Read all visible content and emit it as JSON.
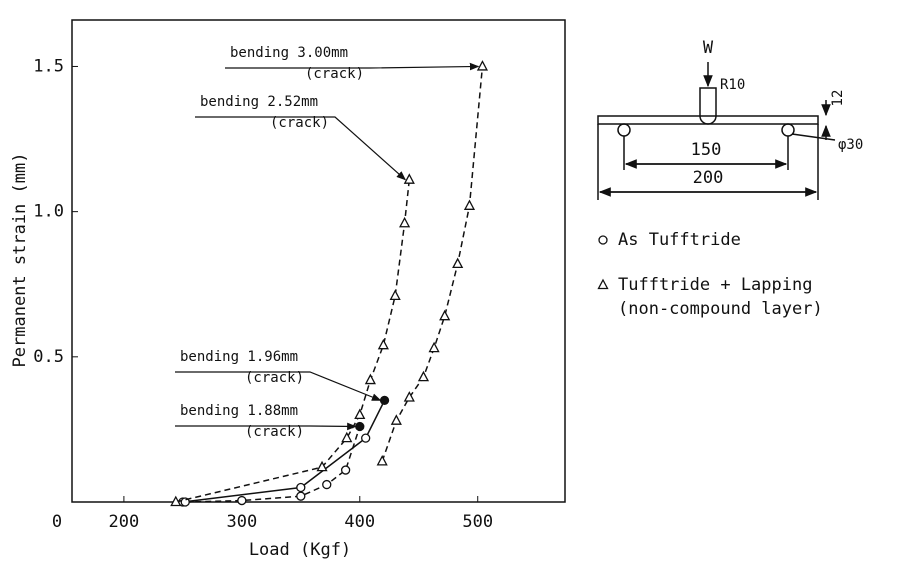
{
  "chart_data": {
    "type": "line",
    "xlabel": "Load (Kgf)",
    "ylabel": "Permanent strain (mm)",
    "origin_label": "0",
    "xlim": [
      156,
      574
    ],
    "xticks": [
      200,
      300,
      400,
      500
    ],
    "ylim": [
      0,
      1.66
    ],
    "yticks": [
      {
        "value": 0.5,
        "label": "0.5"
      },
      {
        "value": 1,
        "label": "1.0"
      },
      1.5
    ],
    "color": "#111111",
    "series": [
      {
        "marker": "circle",
        "dash": false,
        "end_filled": true,
        "x": [
          250,
          350,
          405,
          421
        ],
        "values": [
          0,
          0.05,
          0.22,
          0.35
        ]
      },
      {
        "marker": "circle",
        "dash": true,
        "end_filled": true,
        "x": [
          252,
          300,
          350,
          372,
          388,
          400
        ],
        "values": [
          0,
          0.005,
          0.02,
          0.06,
          0.11,
          0.26
        ]
      },
      {
        "marker": "triangle",
        "dash": true,
        "end_filled": false,
        "x": [
          244,
          368,
          389,
          400,
          409,
          420,
          430,
          438,
          442
        ],
        "values": [
          0,
          0.12,
          0.22,
          0.3,
          0.42,
          0.54,
          0.71,
          0.96,
          1.11
        ]
      },
      {
        "marker": "triangle",
        "dash": true,
        "end_filled": false,
        "x": [
          419,
          431,
          442,
          454,
          463,
          472,
          483,
          493,
          504
        ],
        "values": [
          0.14,
          0.28,
          0.36,
          0.43,
          0.53,
          0.64,
          0.82,
          1.02,
          1.5
        ]
      }
    ],
    "annotations": [
      {
        "text": "bending 3.00mm",
        "note": "(crack)",
        "series": 3
      },
      {
        "text": "bending 2.52mm",
        "note": "(crack)",
        "series": 2
      },
      {
        "text": "bending 1.96mm",
        "note": "(crack)",
        "series": 0
      },
      {
        "text": "bending 1.88mm",
        "note": "(crack)",
        "series": 1
      }
    ],
    "legend": [
      {
        "marker": "circle",
        "label": [
          "As Tufftride"
        ]
      },
      {
        "marker": "triangle",
        "label": [
          "Tufftride + Lapping",
          "(non-compound layer)"
        ]
      }
    ]
  },
  "specimen": {
    "load": "W",
    "radius": "R10",
    "thickness": "12",
    "span": "150",
    "length": "200",
    "roller": "φ30"
  }
}
